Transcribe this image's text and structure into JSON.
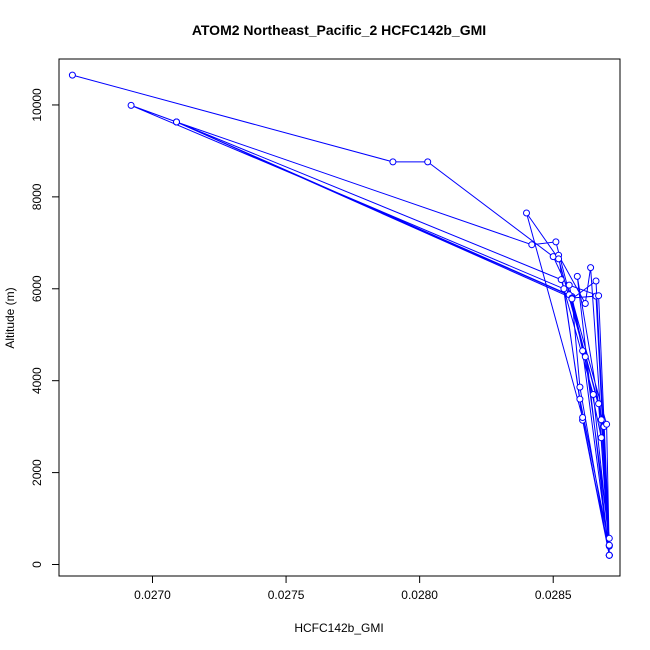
{
  "chart_data": {
    "type": "line",
    "title": "ATOM2 Northeast_Pacific_2 HCFC142b_GMI",
    "xlabel": "HCFC142b_GMI",
    "ylabel": "Altitude (m)",
    "xlim": [
      0.02665,
      0.02875
    ],
    "ylim": [
      -250,
      11000
    ],
    "x_ticks": [
      0.027,
      0.0275,
      0.028,
      0.0285
    ],
    "x_tick_labels": [
      "0.0270",
      "0.0275",
      "0.0280",
      "0.0285"
    ],
    "y_ticks": [
      0,
      2000,
      4000,
      6000,
      8000,
      10000
    ],
    "y_tick_labels": [
      "0",
      "2000",
      "4000",
      "6000",
      "8000",
      "10000"
    ],
    "grid": false,
    "marker": "open-circle",
    "series": [
      {
        "color": "#0000ff",
        "points": [
          [
            0.0267,
            10650
          ],
          [
            0.0279,
            8760
          ],
          [
            0.02803,
            8760
          ],
          [
            0.0285,
            6700
          ],
          [
            0.02857,
            5830
          ],
          [
            0.0286,
            3860
          ],
          [
            0.02871,
            200
          ],
          [
            0.02868,
            2760
          ],
          [
            0.02857,
            5830
          ],
          [
            0.02709,
            9630
          ],
          [
            0.02692,
            9990
          ],
          [
            0.02854,
            6000
          ],
          [
            0.02861,
            3140
          ],
          [
            0.02871,
            200
          ],
          [
            0.02867,
            3500
          ],
          [
            0.02856,
            5870
          ],
          [
            0.02709,
            9630
          ],
          [
            0.02853,
            6200
          ],
          [
            0.02865,
            3700
          ],
          [
            0.02871,
            420
          ],
          [
            0.0286,
            3600
          ],
          [
            0.02852,
            6730
          ],
          [
            0.02862,
            5680
          ],
          [
            0.02864,
            6460
          ],
          [
            0.02871,
            570
          ],
          [
            0.02862,
            4520
          ],
          [
            0.02852,
            6650
          ],
          [
            0.0284,
            7650
          ],
          [
            0.02861,
            3200
          ],
          [
            0.02871,
            200
          ],
          [
            0.02869,
            3000
          ],
          [
            0.02851,
            7020
          ],
          [
            0.02842,
            6960
          ],
          [
            0.02709,
            9630
          ],
          [
            0.02857,
            5800
          ],
          [
            0.02866,
            5840
          ],
          [
            0.02871,
            200
          ],
          [
            0.0287,
            3050
          ],
          [
            0.02857,
            5780
          ],
          [
            0.02866,
            6170
          ],
          [
            0.02871,
            400
          ],
          [
            0.02868,
            3150
          ],
          [
            0.02859,
            6270
          ],
          [
            0.02871,
            200
          ],
          [
            0.02861,
            4650
          ],
          [
            0.02856,
            6080
          ],
          [
            0.02867,
            5850
          ],
          [
            0.02871,
            420
          ]
        ]
      }
    ]
  }
}
